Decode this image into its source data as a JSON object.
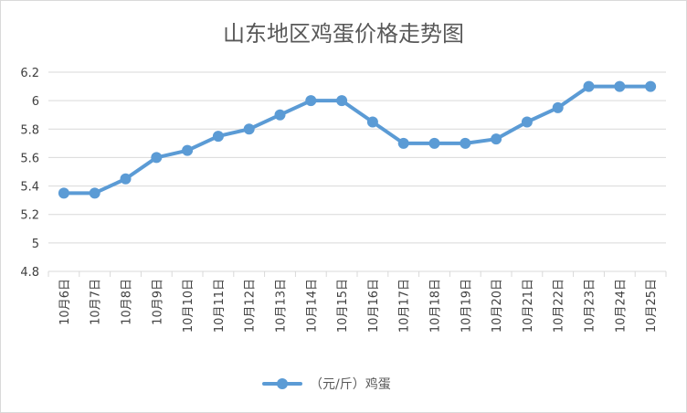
{
  "chart_data": {
    "type": "line",
    "title": "山东地区鸡蛋价格走势图",
    "categories": [
      "10月6日",
      "10月7日",
      "10月8日",
      "10月9日",
      "10月10日",
      "10月11日",
      "10月12日",
      "10月13日",
      "10月14日",
      "10月15日",
      "10月16日",
      "10月17日",
      "10月18日",
      "10月19日",
      "10月20日",
      "10月21日",
      "10月22日",
      "10月23日",
      "10月24日",
      "10月25日"
    ],
    "series": [
      {
        "name": "（元/斤）鸡蛋",
        "values": [
          5.35,
          5.35,
          5.45,
          5.6,
          5.65,
          5.75,
          5.8,
          5.9,
          6.0,
          6.0,
          5.85,
          5.7,
          5.7,
          5.7,
          5.73,
          5.85,
          5.95,
          6.1,
          6.1,
          6.1
        ],
        "color": "#5b9bd5"
      }
    ],
    "yticks": [
      "4.8",
      "5",
      "5.2",
      "5.4",
      "5.6",
      "5.8",
      "6",
      "6.2"
    ],
    "ylim": [
      4.8,
      6.2
    ],
    "grid": true,
    "legend_position": "bottom",
    "xlabel": "",
    "ylabel": ""
  }
}
